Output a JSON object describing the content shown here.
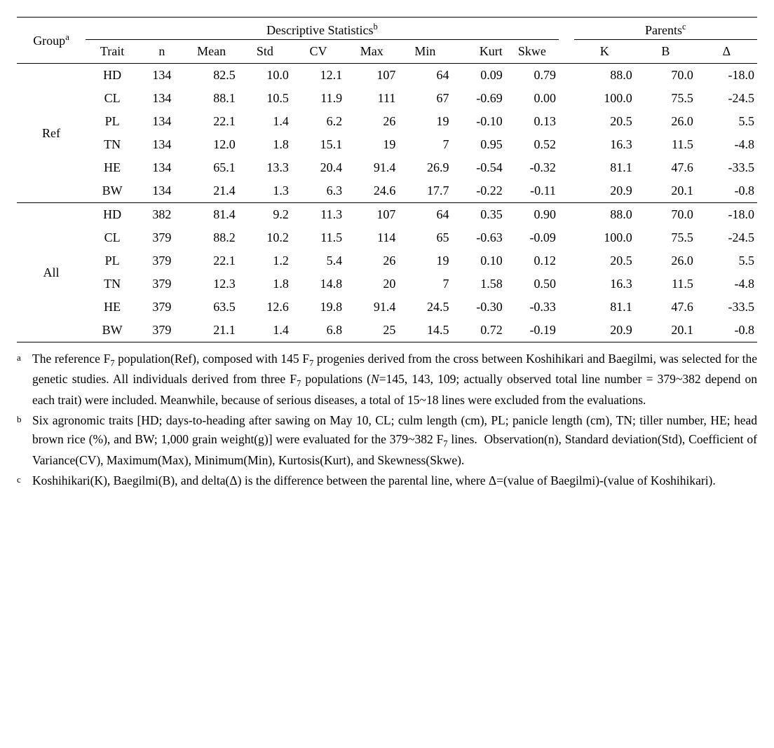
{
  "table": {
    "spanners": {
      "desc": "Descriptive Statistics",
      "desc_sup": "b",
      "parents": "Parents",
      "parents_sup": "c"
    },
    "group_header": "Group",
    "group_sup": "a",
    "columns": {
      "trait": "Trait",
      "n": "n",
      "mean": "Mean",
      "std": "Std",
      "cv": "CV",
      "max": "Max",
      "min": "Min",
      "kurt": "Kurt",
      "skwe": "Skwe",
      "k": "K",
      "b": "B",
      "delta": "Δ"
    },
    "groups": [
      {
        "name": "Ref",
        "rows": [
          {
            "trait": "HD",
            "n": "134",
            "mean": "82.5",
            "std": "10.0",
            "cv": "12.1",
            "max": "107",
            "min": "64",
            "kurt": "0.09",
            "skwe": "0.79",
            "k": "88.0",
            "b": "70.0",
            "d": "-18.0"
          },
          {
            "trait": "CL",
            "n": "134",
            "mean": "88.1",
            "std": "10.5",
            "cv": "11.9",
            "max": "111",
            "min": "67",
            "kurt": "-0.69",
            "skwe": "0.00",
            "k": "100.0",
            "b": "75.5",
            "d": "-24.5"
          },
          {
            "trait": "PL",
            "n": "134",
            "mean": "22.1",
            "std": "1.4",
            "cv": "6.2",
            "max": "26",
            "min": "19",
            "kurt": "-0.10",
            "skwe": "0.13",
            "k": "20.5",
            "b": "26.0",
            "d": "5.5"
          },
          {
            "trait": "TN",
            "n": "134",
            "mean": "12.0",
            "std": "1.8",
            "cv": "15.1",
            "max": "19",
            "min": "7",
            "kurt": "0.95",
            "skwe": "0.52",
            "k": "16.3",
            "b": "11.5",
            "d": "-4.8"
          },
          {
            "trait": "HE",
            "n": "134",
            "mean": "65.1",
            "std": "13.3",
            "cv": "20.4",
            "max": "91.4",
            "min": "26.9",
            "kurt": "-0.54",
            "skwe": "-0.32",
            "k": "81.1",
            "b": "47.6",
            "d": "-33.5"
          },
          {
            "trait": "BW",
            "n": "134",
            "mean": "21.4",
            "std": "1.3",
            "cv": "6.3",
            "max": "24.6",
            "min": "17.7",
            "kurt": "-0.22",
            "skwe": "-0.11",
            "k": "20.9",
            "b": "20.1",
            "d": "-0.8"
          }
        ]
      },
      {
        "name": "All",
        "rows": [
          {
            "trait": "HD",
            "n": "382",
            "mean": "81.4",
            "std": "9.2",
            "cv": "11.3",
            "max": "107",
            "min": "64",
            "kurt": "0.35",
            "skwe": "0.90",
            "k": "88.0",
            "b": "70.0",
            "d": "-18.0"
          },
          {
            "trait": "CL",
            "n": "379",
            "mean": "88.2",
            "std": "10.2",
            "cv": "11.5",
            "max": "114",
            "min": "65",
            "kurt": "-0.63",
            "skwe": "-0.09",
            "k": "100.0",
            "b": "75.5",
            "d": "-24.5"
          },
          {
            "trait": "PL",
            "n": "379",
            "mean": "22.1",
            "std": "1.2",
            "cv": "5.4",
            "max": "26",
            "min": "19",
            "kurt": "0.10",
            "skwe": "0.12",
            "k": "20.5",
            "b": "26.0",
            "d": "5.5"
          },
          {
            "trait": "TN",
            "n": "379",
            "mean": "12.3",
            "std": "1.8",
            "cv": "14.8",
            "max": "20",
            "min": "7",
            "kurt": "1.58",
            "skwe": "0.50",
            "k": "16.3",
            "b": "11.5",
            "d": "-4.8"
          },
          {
            "trait": "HE",
            "n": "379",
            "mean": "63.5",
            "std": "12.6",
            "cv": "19.8",
            "max": "91.4",
            "min": "24.5",
            "kurt": "-0.30",
            "skwe": "-0.33",
            "k": "81.1",
            "b": "47.6",
            "d": "-33.5"
          },
          {
            "trait": "BW",
            "n": "379",
            "mean": "21.1",
            "std": "1.4",
            "cv": "6.8",
            "max": "25",
            "min": "14.5",
            "kurt": "0.72",
            "skwe": "-0.19",
            "k": "20.9",
            "b": "20.1",
            "d": "-0.8"
          }
        ]
      }
    ]
  },
  "footnotes": {
    "a": "The reference F₇ population(Ref), composed with 145 F₇ progenies derived from the cross between Koshihikari and Baegilmi, was selected for the genetic studies. All individuals derived from three F₇ populations (N=145, 143, 109; actually observed total line number = 379~382 depend on each trait) were included. Meanwhile, because of serious diseases, a total of 15~18 lines were excluded from the evaluations.",
    "b": "Six agronomic traits [HD; days-to-heading after sawing on May 10, CL; culm length (cm), PL; panicle length (cm), TN; tiller number, HE; head brown rice (%), and BW; 1,000 grain weight(g)] were evaluated for the 379~382 F₇ lines.  Observation(n), Standard deviation(Std), Coefficient of Variance(CV), Maximum(Max), Minimum(Min), Kurtosis(Kurt), and Skewness(Skwe).",
    "c": "Koshihikari(K), Baegilmi(B), and delta(Δ) is the difference between the parental line, where Δ=(value of Baegilmi)-(value of Koshihikari)."
  },
  "marks": {
    "a": "a",
    "b": "b",
    "c": "c"
  }
}
